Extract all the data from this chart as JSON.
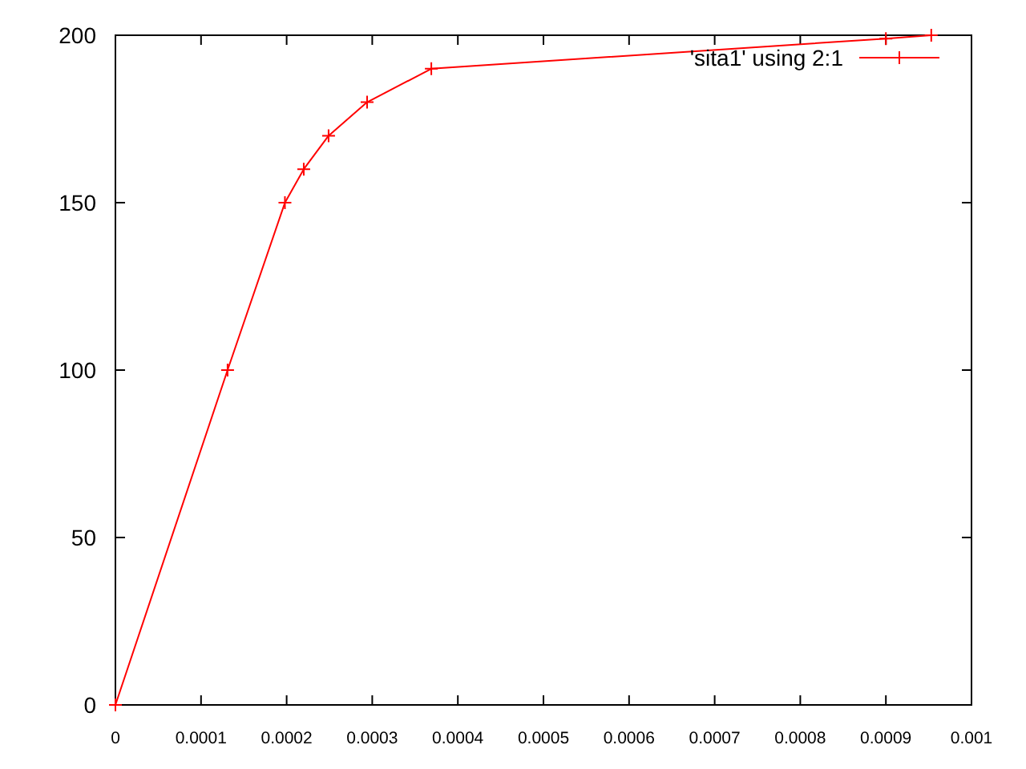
{
  "chart_data": {
    "type": "line",
    "x": [
      0,
      0.000131,
      0.000198,
      0.00022,
      0.000249,
      0.000294,
      0.000369,
      0.0009,
      0.000953
    ],
    "series": [
      {
        "name": "'sita1' using 2:1",
        "color": "#ff0000",
        "values": [
          0,
          100,
          150,
          160,
          170,
          180,
          190,
          199,
          200
        ]
      }
    ],
    "xlim": [
      0,
      0.001
    ],
    "xticks": [
      0,
      0.0001,
      0.0002,
      0.0003,
      0.0004,
      0.0005,
      0.0006,
      0.0007,
      0.0008,
      0.0009,
      0.001
    ],
    "ylim": [
      0,
      200
    ],
    "yticks": [
      0,
      50,
      100,
      150,
      200
    ],
    "grid": false,
    "legend": "top right",
    "marker": "cross",
    "line_style": "solid"
  }
}
